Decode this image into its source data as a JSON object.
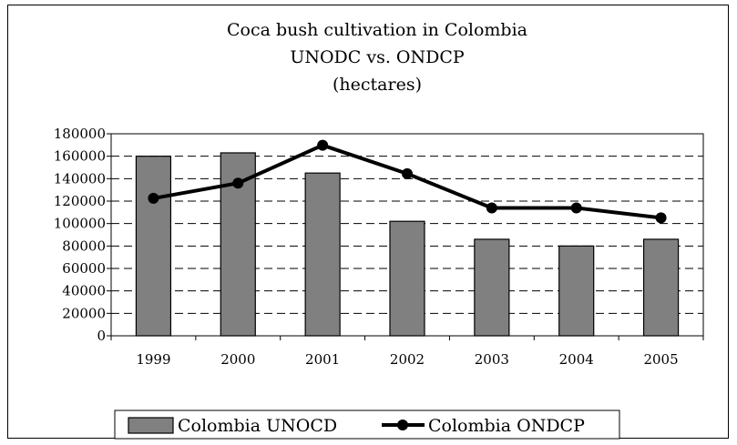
{
  "chart_data": {
    "type": "bar",
    "title_lines": [
      "Coca bush cultivation in Colombia",
      "UNODC vs. ONDCP",
      "(hectares)"
    ],
    "categories": [
      "1999",
      "2000",
      "2001",
      "2002",
      "2003",
      "2004",
      "2005"
    ],
    "series": [
      {
        "name": "Colombia UNOCD",
        "type": "bar",
        "color": "#808080",
        "values": [
          160000,
          163000,
          145000,
          102000,
          86000,
          80000,
          86000
        ]
      },
      {
        "name": "Colombia ONDCP",
        "type": "line",
        "color": "#000000",
        "values": [
          122500,
          136000,
          169800,
          144400,
          113900,
          113900,
          105100
        ]
      }
    ],
    "ylim": [
      0,
      180000
    ],
    "yticks": [
      0,
      20000,
      40000,
      60000,
      80000,
      100000,
      120000,
      140000,
      160000,
      180000
    ],
    "grid": true,
    "legend_position": "bottom"
  }
}
